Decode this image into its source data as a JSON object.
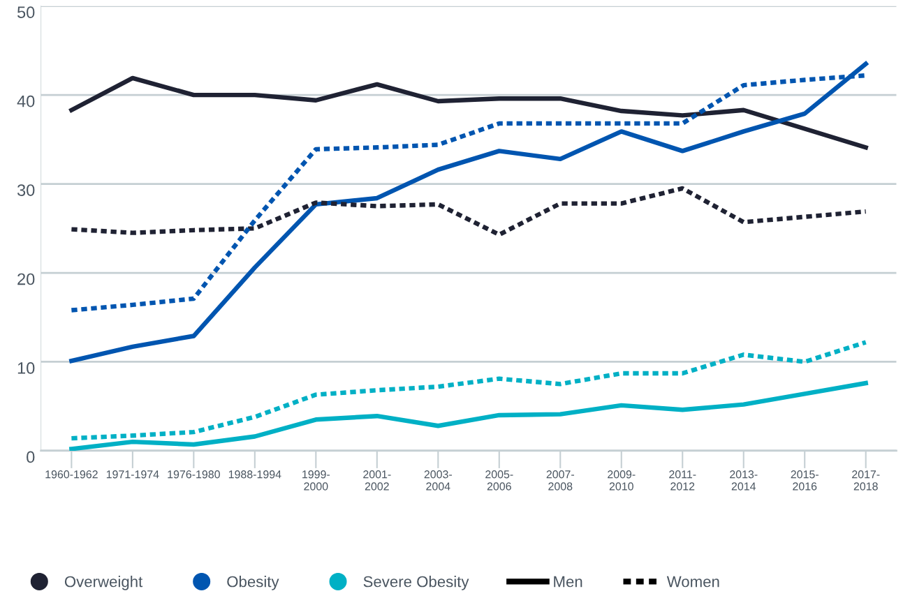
{
  "chart_data": {
    "type": "line",
    "categories": [
      "1960-1962",
      "1971-1974",
      "1976-1980",
      "1988-1994",
      "1999-\n2000",
      "2001-\n2002",
      "2003-\n2004",
      "2005-\n2006",
      "2007-\n2008",
      "2009-\n2010",
      "2011-\n2012",
      "2013-\n2014",
      "2015-\n2016",
      "2017-\n2018"
    ],
    "ylim": [
      0,
      50
    ],
    "yticks": [
      0,
      10,
      20,
      30,
      40,
      50
    ],
    "grid": "y",
    "legend": "bottom",
    "marker": "none",
    "series": [
      {
        "name": "Overweight",
        "color": "#1f2233",
        "line_style": "solid",
        "values": [
          38.3,
          41.9,
          40.0,
          40.0,
          39.4,
          41.2,
          39.3,
          39.6,
          39.6,
          38.2,
          37.7,
          38.3,
          36.2,
          34.1
        ]
      },
      {
        "name": "Obesity",
        "color": "#0055b0",
        "line_style": "solid",
        "values": [
          10.1,
          11.7,
          12.9,
          20.6,
          27.7,
          28.4,
          31.6,
          33.7,
          32.8,
          35.9,
          33.7,
          35.9,
          37.9,
          43.5
        ]
      },
      {
        "name": "Severe Obesity",
        "color": "#00b0c5",
        "line_style": "solid",
        "values": [
          0.2,
          1.0,
          0.7,
          1.6,
          3.5,
          3.9,
          2.8,
          4.0,
          4.1,
          5.1,
          4.6,
          5.2,
          6.4,
          7.6
        ]
      },
      {
        "color": "#1f2233",
        "line_style": "dotted",
        "values": [
          24.9,
          24.5,
          24.8,
          25.0,
          27.9,
          27.5,
          27.7,
          24.3,
          27.8,
          27.8,
          29.5,
          25.7,
          26.3,
          26.9
        ]
      },
      {
        "color": "#0055b0",
        "line_style": "dotted",
        "values": [
          15.8,
          16.4,
          17.1,
          25.9,
          33.9,
          34.1,
          34.4,
          36.8,
          36.8,
          36.8,
          36.8,
          41.1,
          41.7,
          42.2
        ]
      },
      {
        "color": "#00b0c5",
        "line_style": "dotted",
        "values": [
          1.4,
          1.7,
          2.1,
          3.8,
          6.3,
          6.8,
          7.2,
          8.1,
          7.5,
          8.7,
          8.7,
          10.8,
          10.0,
          12.2
        ]
      }
    ],
    "annotations": [
      "Men",
      "Women"
    ]
  }
}
